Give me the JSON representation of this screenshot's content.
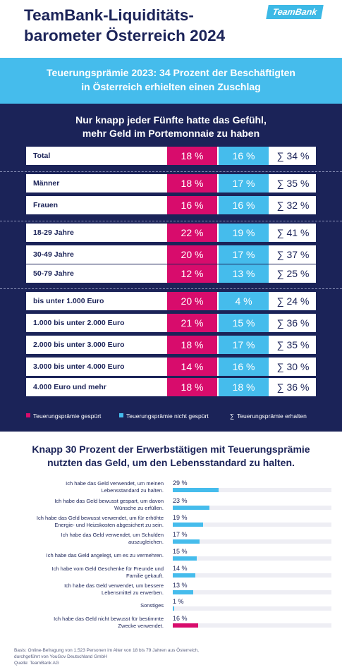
{
  "header": {
    "title_line1": "TeamBank-Liquiditäts-",
    "title_line2": "barometer Österreich 2024",
    "logo": "TeamBank"
  },
  "banner": {
    "line1": "Teuerungsprämie 2023: 34 Prozent der Beschäftigten",
    "line2": "in Österreich erhielten einen Zuschlag"
  },
  "colors": {
    "navy": "#1b2358",
    "pink": "#d80c6c",
    "blue": "#45bcec"
  },
  "chart_data": [
    {
      "type": "table",
      "title_line1": "Nur knapp jeder Fünfte hatte das Gefühl,",
      "title_line2": "mehr Geld im Portemonnaie zu haben",
      "columns": [
        "Teuerungsprämie gespürt",
        "Teuerungsprämie nicht gespürt",
        "Teuerungsprämie erhalten"
      ],
      "rows": [
        {
          "label": "Total",
          "felt": "18 %",
          "not_felt": "16 %",
          "total": "∑ 34 %"
        },
        {
          "label": "Männer",
          "felt": "18 %",
          "not_felt": "17 %",
          "total": "∑ 35 %"
        },
        {
          "label": "Frauen",
          "felt": "16 %",
          "not_felt": "16 %",
          "total": "∑ 32 %"
        },
        {
          "label": "18-29 Jahre",
          "felt": "22 %",
          "not_felt": "19 %",
          "total": "∑ 41 %"
        },
        {
          "label": "30-49 Jahre",
          "felt": "20 %",
          "not_felt": "17 %",
          "total": "∑ 37 %"
        },
        {
          "label": "50-79 Jahre",
          "felt": "12 %",
          "not_felt": "13 %",
          "total": "∑ 25 %"
        },
        {
          "label": "bis unter 1.000 Euro",
          "felt": "20 %",
          "not_felt": "4 %",
          "total": "∑ 24 %"
        },
        {
          "label": "1.000 bis unter 2.000 Euro",
          "felt": "21 %",
          "not_felt": "15 %",
          "total": "∑ 36 %"
        },
        {
          "label": "2.000 bis unter 3.000 Euro",
          "felt": "18 %",
          "not_felt": "17 %",
          "total": "∑ 35 %"
        },
        {
          "label": "3.000 bis unter 4.000 Euro",
          "felt": "14 %",
          "not_felt": "16 %",
          "total": "∑ 30 %"
        },
        {
          "label": "4.000 Euro und mehr",
          "felt": "18 %",
          "not_felt": "18 %",
          "total": "∑ 36 %"
        }
      ],
      "legend": {
        "felt": "Teuerungsprämie gespürt",
        "not_felt": "Teuerungsprämie nicht gespürt",
        "total_symbol": "∑",
        "total": "Teuerungsprämie erhalten"
      }
    },
    {
      "type": "bar",
      "orientation": "horizontal",
      "title_line1": "Knapp 30 Prozent der Erwerbstätigen mit Teuerungsprämie",
      "title_line2": "nutzten das Geld, um den Lebensstandard zu halten.",
      "xlim": [
        0,
        100
      ],
      "categories": [
        [
          "Ich habe das Geld verwendet, um meinen",
          "Lebensstandard zu halten."
        ],
        [
          "Ich habe das Geld bewusst gespart, um davon",
          "Wünsche zu erfüllen."
        ],
        [
          "Ich habe das Geld bewusst verwendet, um für erhöhte",
          "Energie- und Heizskosten abgesichert zu sein."
        ],
        [
          "Ich habe das Geld verwendet, um Schulden",
          "auszugleichen."
        ],
        [
          "Ich habe das Geld angelegt, um es zu vermehren."
        ],
        [
          "Ich habe vom Geld Geschenke für Freunde und",
          "Familie gekauft."
        ],
        [
          "Ich habe das Geld verwendet, um bessere",
          "Lebensmittel zu erwerben."
        ],
        [
          "Sonstiges"
        ],
        [
          "Ich habe das Geld nicht bewusst für bestimmte",
          "Zwecke verwendet."
        ]
      ],
      "values": [
        29,
        23,
        19,
        17,
        15,
        14,
        13,
        1,
        16
      ],
      "value_labels": [
        "29 %",
        "23 %",
        "19 %",
        "17 %",
        "15 %",
        "14 %",
        "13 %",
        "1 %",
        "16 %"
      ]
    }
  ],
  "footer": {
    "line1": "Basis: Online-Befragung von 1.523 Personen im Alter von 18 bis 79 Jahren aus Österreich,",
    "line2": "durchgeführt von YouGov Deutschland GmbH",
    "line3": "Quelle: TeamBank AG"
  }
}
